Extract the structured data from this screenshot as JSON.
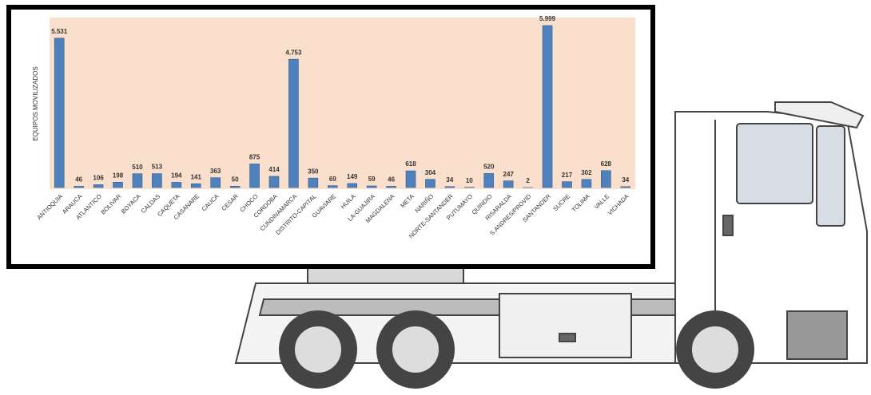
{
  "chart_data": {
    "type": "bar",
    "y_label": "EQUIPOS MOVILIZADOS",
    "color": "#4f81bd",
    "background": "#fadfcd",
    "categories": [
      "ANTIOQUIA",
      "ARAUCA",
      "ATLANTICO",
      "BOLIVAR",
      "BOYACA",
      "CALDAS",
      "CAQUETA",
      "CASANARE",
      "CAUCA",
      "CESAR",
      "CHOCO",
      "CORDOBA",
      "CUNDINAMARCA",
      "DISTRITO-CAPITAL",
      "GUAVIARE",
      "HUILA",
      "LA-GUAJIRA",
      "MAGDALENA",
      "META",
      "NARIÑO",
      "NORTE-SANTANDER",
      "PUTUMAYO",
      "QUINDIO",
      "RISARALDA",
      "S.ANDRES/PROVID",
      "SANTANDER",
      "SUCRE",
      "TOLIMA",
      "VALLE",
      "VICHADA"
    ],
    "values": [
      5531,
      46,
      106,
      198,
      510,
      513,
      194,
      141,
      363,
      50,
      875,
      414,
      4753,
      350,
      69,
      149,
      59,
      46,
      618,
      304,
      34,
      10,
      520,
      247,
      2,
      5999,
      217,
      302,
      628,
      34
    ],
    "value_labels": [
      "5.531",
      "46",
      "106",
      "198",
      "510",
      "513",
      "194",
      "141",
      "363",
      "50",
      "875",
      "414",
      "4.753",
      "350",
      "69",
      "149",
      "59",
      "46",
      "618",
      "304",
      "34",
      "10",
      "520",
      "247",
      "2",
      "5.999",
      "217",
      "302",
      "628",
      "34"
    ]
  }
}
